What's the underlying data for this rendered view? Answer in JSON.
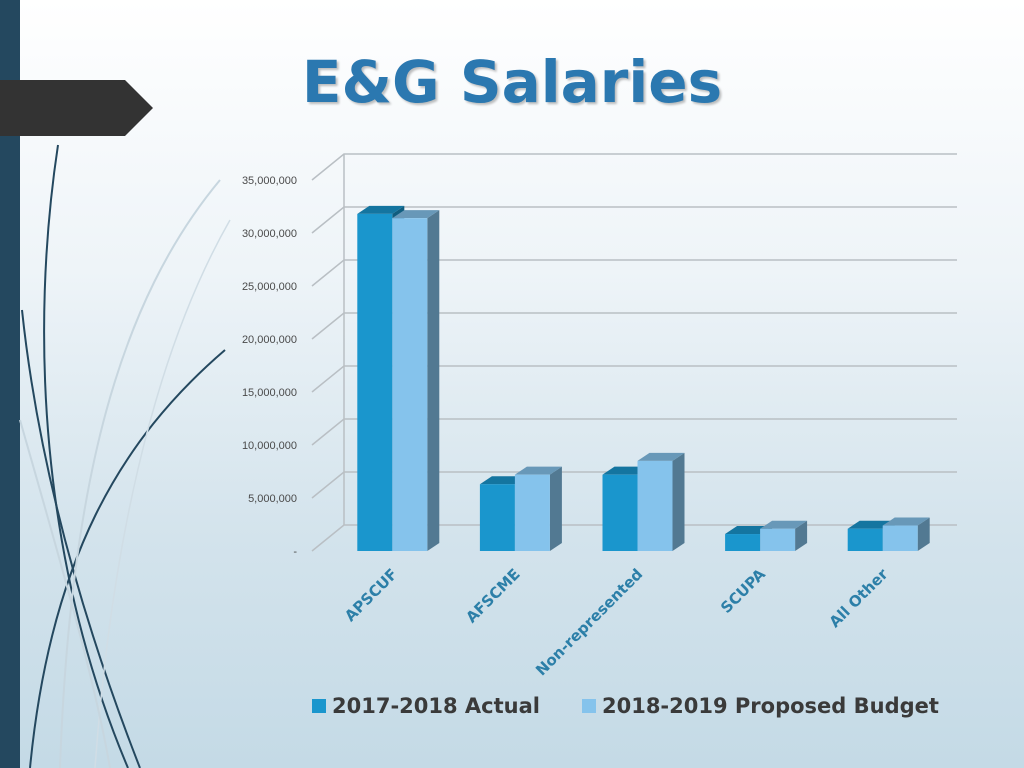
{
  "slide": {
    "title": "E&G Salaries",
    "accent_dark": "#24485f",
    "arrow_color": "#333333"
  },
  "chart_data": {
    "type": "bar",
    "categories": [
      "APSCUF",
      "AFSCME",
      "Non-represented",
      "SCUPA",
      "All Other"
    ],
    "series": [
      {
        "name": "2017-2018 Actual",
        "values": [
          31800000,
          6300000,
          7200000,
          1600000,
          2100000
        ],
        "color": "#1a96cd"
      },
      {
        "name": "2018-2019 Proposed Budget",
        "values": [
          31400000,
          7200000,
          8500000,
          2100000,
          2400000
        ],
        "color": "#85c3ec"
      }
    ],
    "yticks": [
      "-",
      "5,000,000",
      "10,000,000",
      "15,000,000",
      "20,000,000",
      "25,000,000",
      "30,000,000",
      "35,000,000"
    ],
    "ylim": [
      0,
      35000000
    ],
    "grid": true,
    "legend_position": "bottom",
    "style": "3d-clustered-column"
  }
}
